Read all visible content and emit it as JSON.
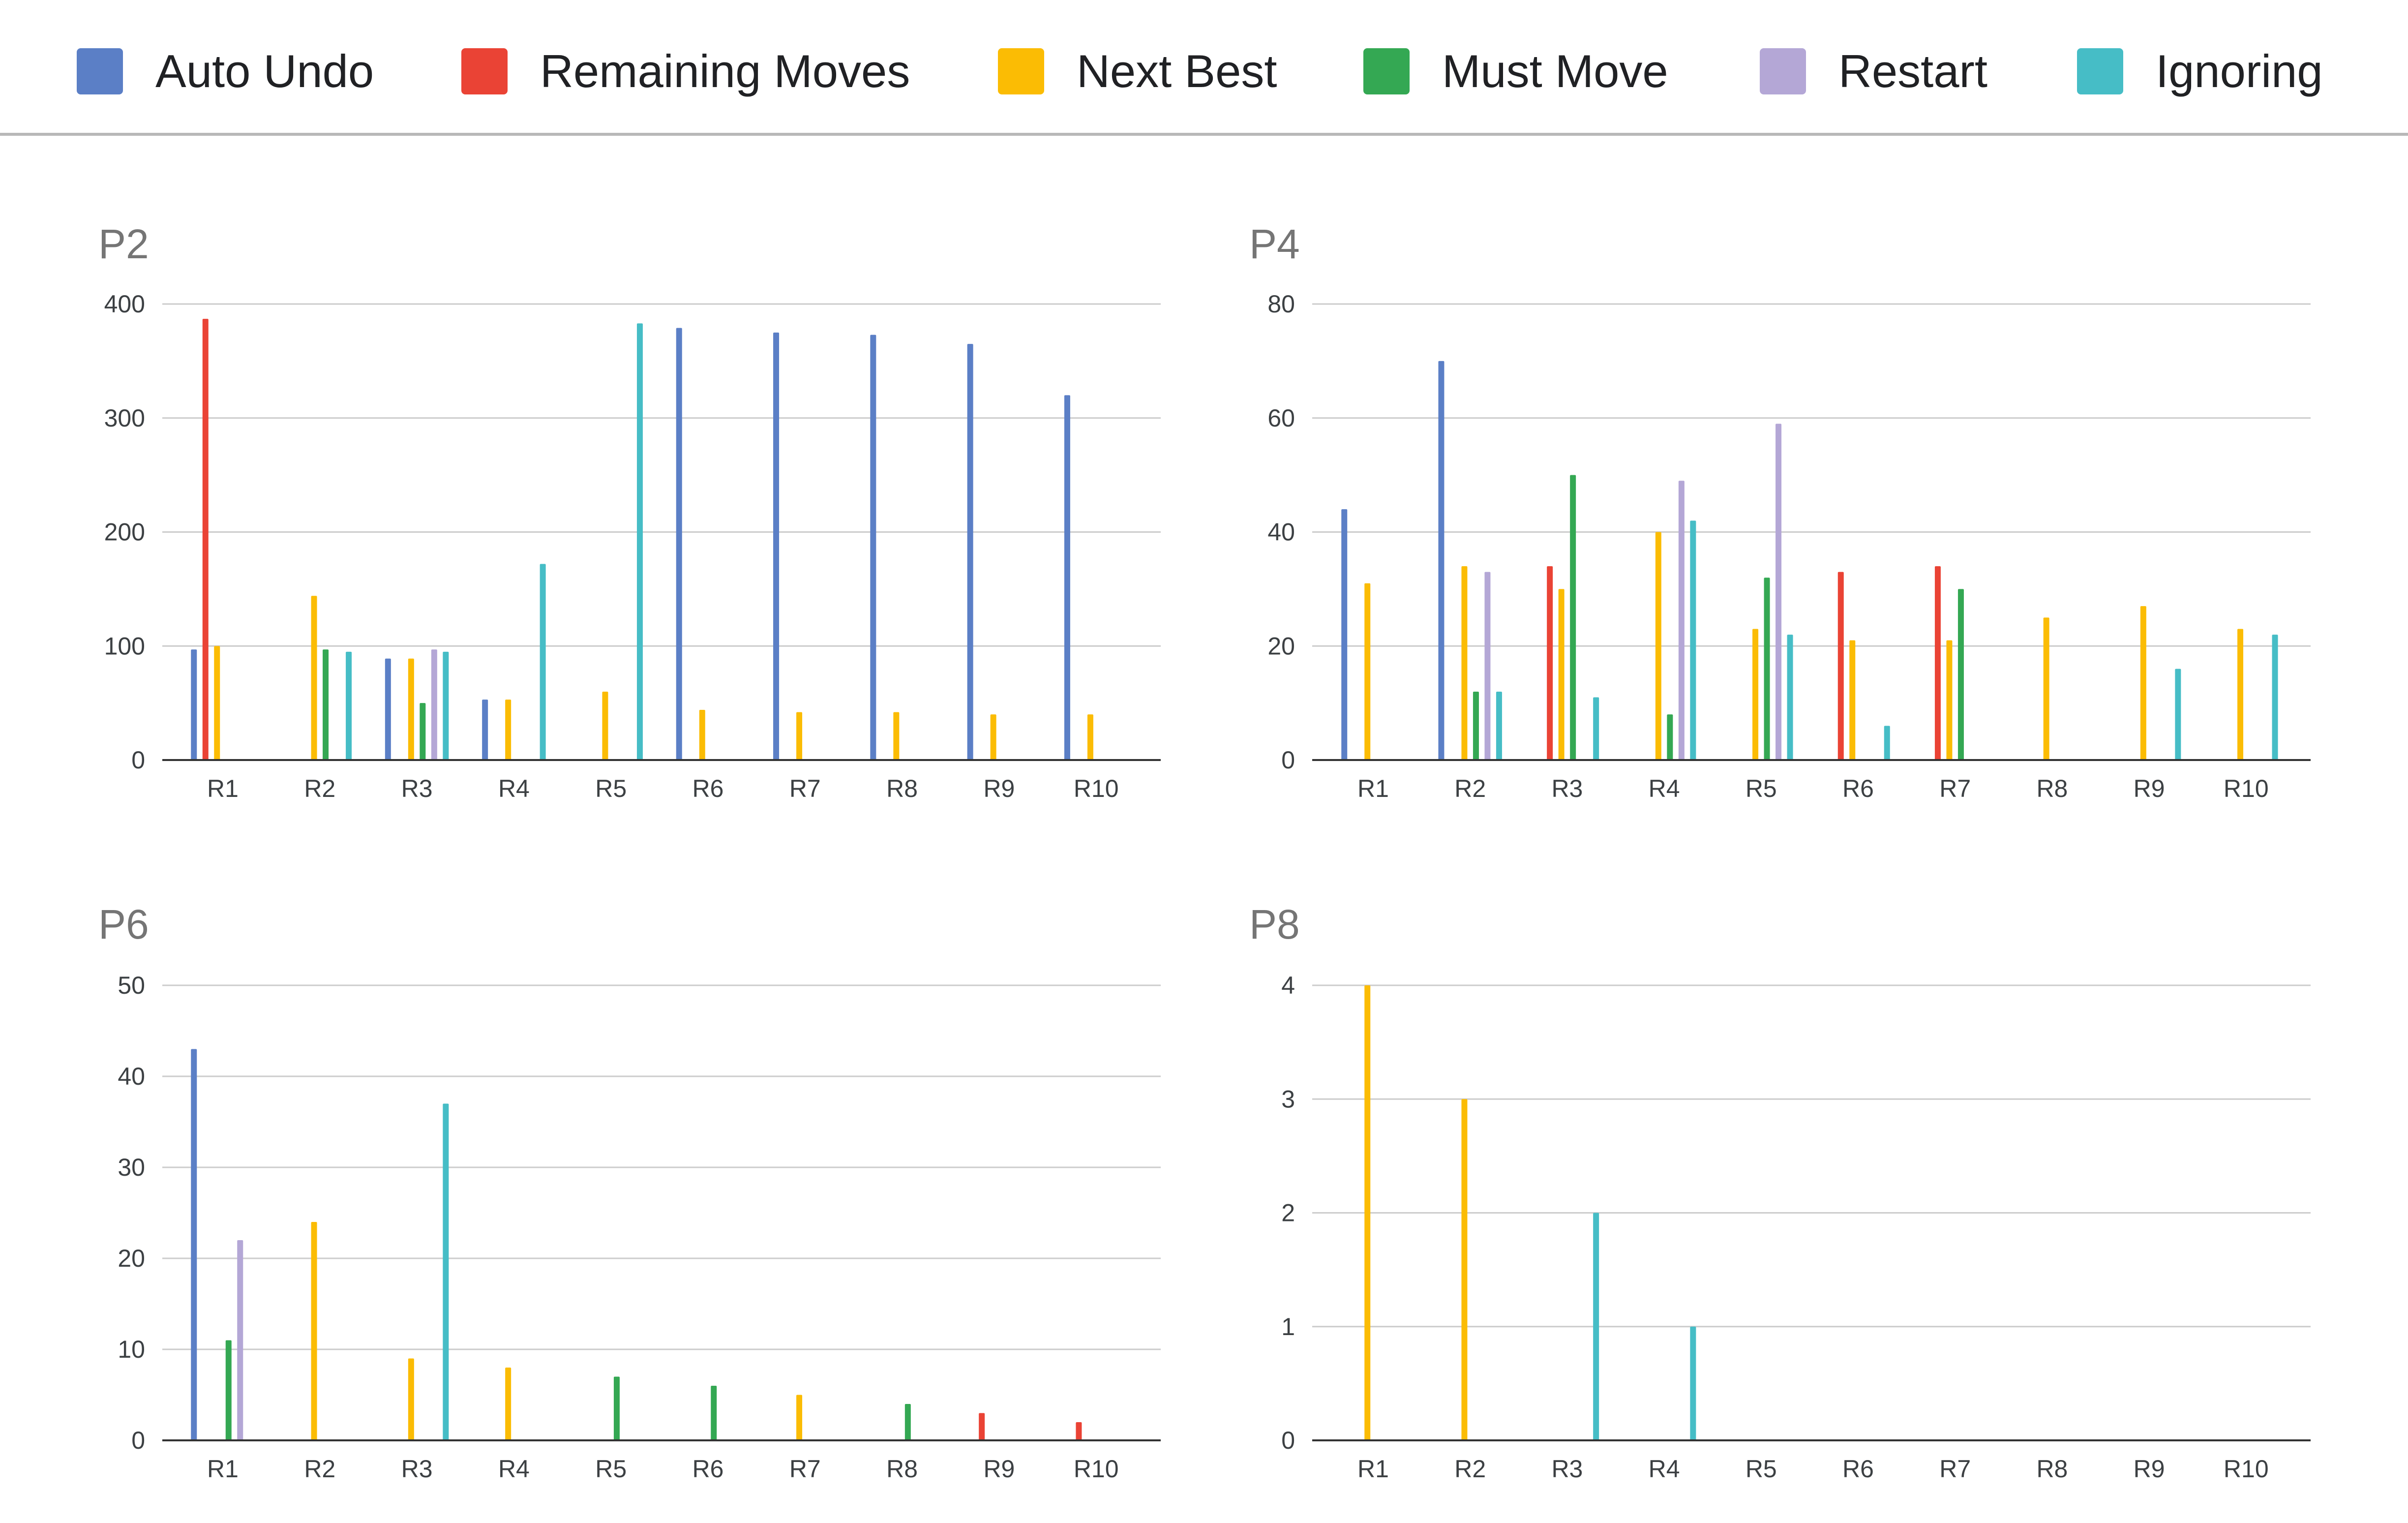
{
  "legend": {
    "items": [
      {
        "label": "Auto Undo",
        "color": "#5b7fc6"
      },
      {
        "label": "Remaining Moves",
        "color": "#ea4335"
      },
      {
        "label": "Next Best",
        "color": "#fbbc04"
      },
      {
        "label": "Must Move",
        "color": "#34a853"
      },
      {
        "label": "Restart",
        "color": "#b4a7d6"
      },
      {
        "label": "Ignoring",
        "color": "#46bdc6"
      }
    ]
  },
  "chart_data": [
    {
      "type": "bar",
      "title": "P2",
      "categories": [
        "R1",
        "R2",
        "R3",
        "R4",
        "R5",
        "R6",
        "R7",
        "R8",
        "R9",
        "R10"
      ],
      "ylim": [
        0,
        400
      ],
      "yticks": [
        0,
        100,
        200,
        300,
        400
      ],
      "grid": true,
      "legend_position": "top",
      "series": [
        {
          "name": "Auto Undo",
          "values": [
            97,
            0,
            89,
            53,
            0,
            379,
            375,
            373,
            365,
            320
          ]
        },
        {
          "name": "Remaining Moves",
          "values": [
            387,
            0,
            0,
            0,
            0,
            0,
            0,
            0,
            0,
            0
          ]
        },
        {
          "name": "Next Best",
          "values": [
            100,
            144,
            89,
            53,
            60,
            44,
            42,
            42,
            40,
            40
          ]
        },
        {
          "name": "Must Move",
          "values": [
            0,
            97,
            50,
            0,
            0,
            0,
            0,
            0,
            0,
            0
          ]
        },
        {
          "name": "Restart",
          "values": [
            0,
            0,
            97,
            0,
            0,
            0,
            0,
            0,
            0,
            0
          ]
        },
        {
          "name": "Ignoring",
          "values": [
            0,
            95,
            95,
            172,
            383,
            0,
            0,
            0,
            0,
            0
          ]
        }
      ]
    },
    {
      "type": "bar",
      "title": "P4",
      "categories": [
        "R1",
        "R2",
        "R3",
        "R4",
        "R5",
        "R6",
        "R7",
        "R8",
        "R9",
        "R10"
      ],
      "ylim": [
        0,
        80
      ],
      "yticks": [
        0,
        20,
        40,
        60,
        80
      ],
      "grid": true,
      "legend_position": "top",
      "series": [
        {
          "name": "Auto Undo",
          "values": [
            44,
            70,
            0,
            0,
            0,
            0,
            0,
            0,
            0,
            0
          ]
        },
        {
          "name": "Remaining Moves",
          "values": [
            0,
            0,
            34,
            0,
            0,
            33,
            34,
            0,
            0,
            0
          ]
        },
        {
          "name": "Next Best",
          "values": [
            31,
            34,
            30,
            40,
            23,
            21,
            21,
            25,
            27,
            23
          ]
        },
        {
          "name": "Must Move",
          "values": [
            0,
            12,
            50,
            8,
            32,
            0,
            30,
            0,
            0,
            0
          ]
        },
        {
          "name": "Restart",
          "values": [
            0,
            33,
            0,
            49,
            59,
            0,
            0,
            0,
            0,
            0
          ]
        },
        {
          "name": "Ignoring",
          "values": [
            0,
            12,
            11,
            42,
            22,
            6,
            0,
            0,
            16,
            22
          ]
        }
      ]
    },
    {
      "type": "bar",
      "title": "P6",
      "categories": [
        "R1",
        "R2",
        "R3",
        "R4",
        "R5",
        "R6",
        "R7",
        "R8",
        "R9",
        "R10"
      ],
      "ylim": [
        0,
        50
      ],
      "yticks": [
        0,
        10,
        20,
        30,
        40,
        50
      ],
      "grid": true,
      "legend_position": "top",
      "series": [
        {
          "name": "Auto Undo",
          "values": [
            43,
            0,
            0,
            0,
            0,
            0,
            0,
            0,
            0,
            0
          ]
        },
        {
          "name": "Remaining Moves",
          "values": [
            0,
            0,
            0,
            0,
            0,
            0,
            0,
            0,
            3,
            2
          ]
        },
        {
          "name": "Next Best",
          "values": [
            0,
            24,
            9,
            8,
            0,
            0,
            5,
            0,
            0,
            0
          ]
        },
        {
          "name": "Must Move",
          "values": [
            11,
            0,
            0,
            0,
            7,
            6,
            0,
            4,
            0,
            0
          ]
        },
        {
          "name": "Restart",
          "values": [
            22,
            0,
            0,
            0,
            0,
            0,
            0,
            0,
            0,
            0
          ]
        },
        {
          "name": "Ignoring",
          "values": [
            0,
            0,
            37,
            0,
            0,
            0,
            0,
            0,
            0,
            0
          ]
        }
      ]
    },
    {
      "type": "bar",
      "title": "P8",
      "categories": [
        "R1",
        "R2",
        "R3",
        "R4",
        "R5",
        "R6",
        "R7",
        "R8",
        "R9",
        "R10"
      ],
      "ylim": [
        0,
        4
      ],
      "yticks": [
        0,
        1,
        2,
        3,
        4
      ],
      "grid": true,
      "legend_position": "top",
      "series": [
        {
          "name": "Auto Undo",
          "values": [
            0,
            0,
            0,
            0,
            0,
            0,
            0,
            0,
            0,
            0
          ]
        },
        {
          "name": "Remaining Moves",
          "values": [
            0,
            0,
            0,
            0,
            0,
            0,
            0,
            0,
            0,
            0
          ]
        },
        {
          "name": "Next Best",
          "values": [
            4,
            3,
            0,
            0,
            0,
            0,
            0,
            0,
            0,
            0
          ]
        },
        {
          "name": "Must Move",
          "values": [
            0,
            0,
            0,
            0,
            0,
            0,
            0,
            0,
            0,
            0
          ]
        },
        {
          "name": "Restart",
          "values": [
            0,
            0,
            0,
            0,
            0,
            0,
            0,
            0,
            0,
            0
          ]
        },
        {
          "name": "Ignoring",
          "values": [
            0,
            0,
            2,
            1,
            0,
            0,
            0,
            0,
            0,
            0
          ]
        }
      ]
    }
  ]
}
